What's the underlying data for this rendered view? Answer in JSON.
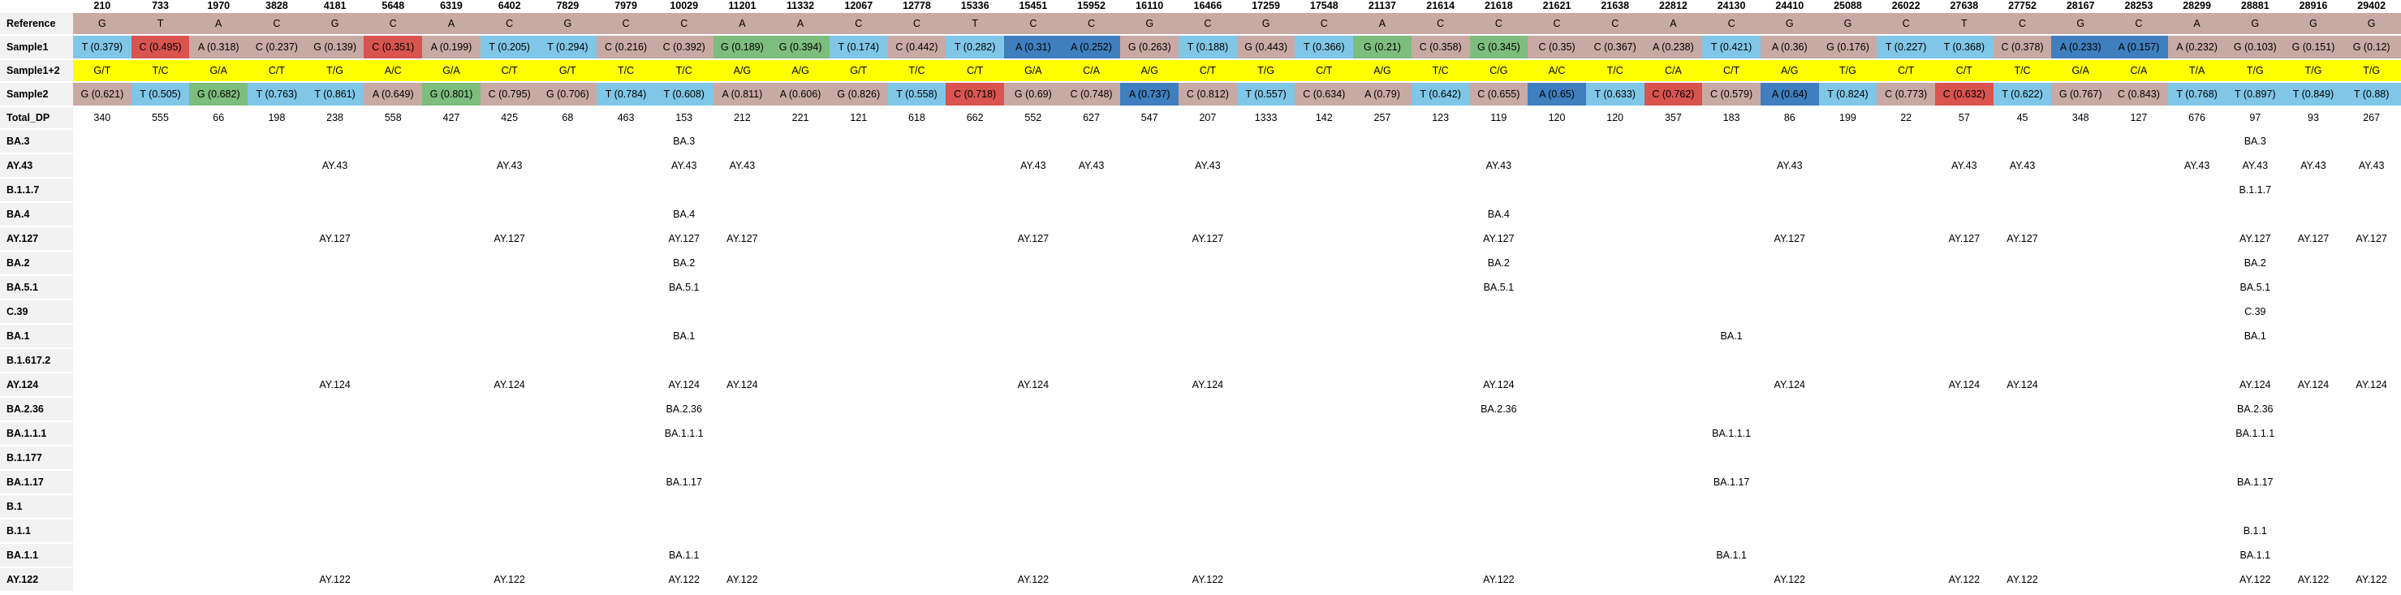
{
  "colors": {
    "T": "#7fc6e7",
    "C": "#c9a9a4",
    "A": "#c9a9a4",
    "G": "#c9a9a4",
    "T_sample": "#7fc6e7",
    "C_high": "#d9534f",
    "A_high": "#3f7fbf",
    "G_high": "#7dbd7d",
    "yellow": "#ffff00",
    "label_bg": "#f2f2f2"
  },
  "positions": [
    "210",
    "733",
    "1970",
    "3828",
    "4181",
    "5648",
    "6319",
    "6402",
    "7829",
    "7979",
    "10029",
    "11201",
    "11332",
    "12067",
    "12778",
    "15336",
    "15451",
    "15952",
    "16110",
    "16466",
    "17259",
    "17548",
    "21137",
    "21614",
    "21618",
    "21621",
    "21638",
    "22812",
    "24130",
    "24410",
    "25088",
    "26022",
    "27638",
    "27752",
    "28167",
    "28253",
    "28299",
    "28881",
    "28916",
    "29402"
  ],
  "rows": {
    "reference": {
      "label": "Reference",
      "values": [
        "G",
        "T",
        "A",
        "C",
        "G",
        "C",
        "A",
        "C",
        "G",
        "C",
        "C",
        "A",
        "A",
        "C",
        "C",
        "T",
        "C",
        "C",
        "G",
        "C",
        "G",
        "C",
        "A",
        "C",
        "C",
        "C",
        "C",
        "A",
        "C",
        "G",
        "G",
        "C",
        "T",
        "C",
        "G",
        "C",
        "A",
        "G",
        "G",
        "G"
      ]
    },
    "sample1": {
      "label": "Sample1",
      "values": [
        "T (0.379)",
        "C (0.495)",
        "A (0.318)",
        "C (0.237)",
        "G (0.139)",
        "C (0.351)",
        "A (0.199)",
        "T (0.205)",
        "T (0.294)",
        "C (0.216)",
        "C (0.392)",
        "G (0.189)",
        "G (0.394)",
        "T (0.174)",
        "C (0.442)",
        "T (0.282)",
        "A (0.31)",
        "A (0.252)",
        "G (0.263)",
        "T (0.188)",
        "G (0.443)",
        "T (0.366)",
        "G (0.21)",
        "C (0.358)",
        "G (0.345)",
        "C (0.35)",
        "C (0.367)",
        "A (0.238)",
        "T (0.421)",
        "A (0.36)",
        "G (0.176)",
        "T (0.227)",
        "T (0.368)",
        "C (0.378)",
        "A (0.233)",
        "A (0.157)",
        "A (0.232)",
        "G (0.103)",
        "G (0.151)",
        "G (0.12)"
      ],
      "colors": [
        "T",
        "C_high",
        "A",
        "C",
        "G",
        "C_high",
        "A",
        "T",
        "T",
        "C",
        "C",
        "G_high",
        "G_high",
        "T",
        "C",
        "T",
        "A_high",
        "A_high",
        "G",
        "T",
        "G",
        "T",
        "G_high",
        "C",
        "G_high",
        "C",
        "C",
        "A",
        "T",
        "A",
        "G",
        "T",
        "T",
        "C",
        "A_high",
        "A_high",
        "A",
        "G",
        "G",
        "G"
      ]
    },
    "sample12": {
      "label": "Sample1+2",
      "values": [
        "G/T",
        "T/C",
        "G/A",
        "C/T",
        "T/G",
        "A/C",
        "G/A",
        "C/T",
        "G/T",
        "T/C",
        "T/C",
        "A/G",
        "A/G",
        "G/T",
        "T/C",
        "C/T",
        "G/A",
        "C/A",
        "A/G",
        "C/T",
        "T/G",
        "C/T",
        "A/G",
        "T/C",
        "C/G",
        "A/C",
        "T/C",
        "C/A",
        "C/T",
        "A/G",
        "T/G",
        "C/T",
        "C/T",
        "T/C",
        "G/A",
        "C/A",
        "T/A",
        "T/G",
        "T/G",
        "T/G"
      ]
    },
    "sample2": {
      "label": "Sample2",
      "values": [
        "G (0.621)",
        "T (0.505)",
        "G (0.682)",
        "T (0.763)",
        "T (0.861)",
        "A (0.649)",
        "G (0.801)",
        "C (0.795)",
        "G (0.706)",
        "T (0.784)",
        "T (0.608)",
        "A (0.811)",
        "A (0.606)",
        "G (0.826)",
        "T (0.558)",
        "C (0.718)",
        "G (0.69)",
        "C (0.748)",
        "A (0.737)",
        "C (0.812)",
        "T (0.557)",
        "C (0.634)",
        "A (0.79)",
        "T (0.642)",
        "C (0.655)",
        "A (0.65)",
        "T (0.633)",
        "C (0.762)",
        "C (0.579)",
        "A (0.64)",
        "T (0.824)",
        "C (0.773)",
        "C (0.632)",
        "T (0.622)",
        "G (0.767)",
        "C (0.843)",
        "T (0.768)",
        "T (0.897)",
        "T (0.849)",
        "T (0.88)"
      ],
      "colors": [
        "G",
        "T",
        "G_high",
        "T",
        "T",
        "A",
        "G_high",
        "C",
        "G",
        "T",
        "T",
        "A",
        "A",
        "G",
        "T",
        "C_high",
        "G",
        "C",
        "A_high",
        "C",
        "T",
        "C",
        "A",
        "T",
        "C",
        "A_high",
        "T",
        "C_high",
        "C",
        "A_high",
        "T",
        "C",
        "C_high",
        "T",
        "G",
        "C",
        "T",
        "T",
        "T",
        "T"
      ]
    },
    "total_dp": {
      "label": "Total_DP",
      "values": [
        "340",
        "555",
        "66",
        "198",
        "238",
        "558",
        "427",
        "425",
        "68",
        "463",
        "153",
        "212",
        "221",
        "121",
        "618",
        "662",
        "552",
        "627",
        "547",
        "207",
        "1333",
        "142",
        "257",
        "123",
        "119",
        "120",
        "120",
        "357",
        "183",
        "86",
        "199",
        "22",
        "57",
        "45",
        "348",
        "127",
        "676",
        "97",
        "93",
        "267"
      ]
    }
  },
  "lineages": [
    {
      "label": "BA.3",
      "values": {
        "10": "BA.3",
        "37": "BA.3"
      }
    },
    {
      "label": "AY.43",
      "values": {
        "4": "AY.43",
        "7": "AY.43",
        "10": "AY.43",
        "11": "AY.43",
        "16": "AY.43",
        "17": "AY.43",
        "19": "AY.43",
        "24": "AY.43",
        "29": "AY.43",
        "32": "AY.43",
        "33": "AY.43",
        "36": "AY.43",
        "37": "AY.43",
        "38": "AY.43",
        "39": "AY.43"
      }
    },
    {
      "label": "B.1.1.7",
      "values": {
        "37": "B.1.1.7"
      }
    },
    {
      "label": "BA.4",
      "values": {
        "10": "BA.4",
        "24": "BA.4"
      }
    },
    {
      "label": "AY.127",
      "values": {
        "4": "AY.127",
        "7": "AY.127",
        "10": "AY.127",
        "11": "AY.127",
        "16": "AY.127",
        "19": "AY.127",
        "24": "AY.127",
        "29": "AY.127",
        "32": "AY.127",
        "33": "AY.127",
        "37": "AY.127",
        "38": "AY.127",
        "39": "AY.127"
      }
    },
    {
      "label": "BA.2",
      "values": {
        "10": "BA.2",
        "24": "BA.2",
        "37": "BA.2"
      }
    },
    {
      "label": "BA.5.1",
      "values": {
        "10": "BA.5.1",
        "24": "BA.5.1",
        "37": "BA.5.1"
      }
    },
    {
      "label": "C.39",
      "values": {
        "37": "C.39"
      }
    },
    {
      "label": "BA.1",
      "values": {
        "10": "BA.1",
        "28": "BA.1",
        "37": "BA.1"
      }
    },
    {
      "label": "B.1.617.2",
      "values": {}
    },
    {
      "label": "AY.124",
      "values": {
        "4": "AY.124",
        "7": "AY.124",
        "10": "AY.124",
        "11": "AY.124",
        "16": "AY.124",
        "19": "AY.124",
        "24": "AY.124",
        "29": "AY.124",
        "32": "AY.124",
        "33": "AY.124",
        "37": "AY.124",
        "38": "AY.124",
        "39": "AY.124"
      }
    },
    {
      "label": "BA.2.36",
      "values": {
        "10": "BA.2.36",
        "24": "BA.2.36",
        "37": "BA.2.36"
      }
    },
    {
      "label": "BA.1.1.1",
      "values": {
        "10": "BA.1.1.1",
        "28": "BA.1.1.1",
        "37": "BA.1.1.1"
      }
    },
    {
      "label": "B.1.177",
      "values": {}
    },
    {
      "label": "BA.1.17",
      "values": {
        "10": "BA.1.17",
        "28": "BA.1.17",
        "37": "BA.1.17"
      }
    },
    {
      "label": "B.1",
      "values": {}
    },
    {
      "label": "B.1.1",
      "values": {
        "37": "B.1.1"
      }
    },
    {
      "label": "BA.1.1",
      "values": {
        "10": "BA.1.1",
        "28": "BA.1.1",
        "37": "BA.1.1"
      }
    },
    {
      "label": "AY.122",
      "values": {
        "4": "AY.122",
        "7": "AY.122",
        "10": "AY.122",
        "11": "AY.122",
        "16": "AY.122",
        "19": "AY.122",
        "24": "AY.122",
        "29": "AY.122",
        "32": "AY.122",
        "33": "AY.122",
        "37": "AY.122",
        "38": "AY.122",
        "39": "AY.122"
      }
    }
  ]
}
